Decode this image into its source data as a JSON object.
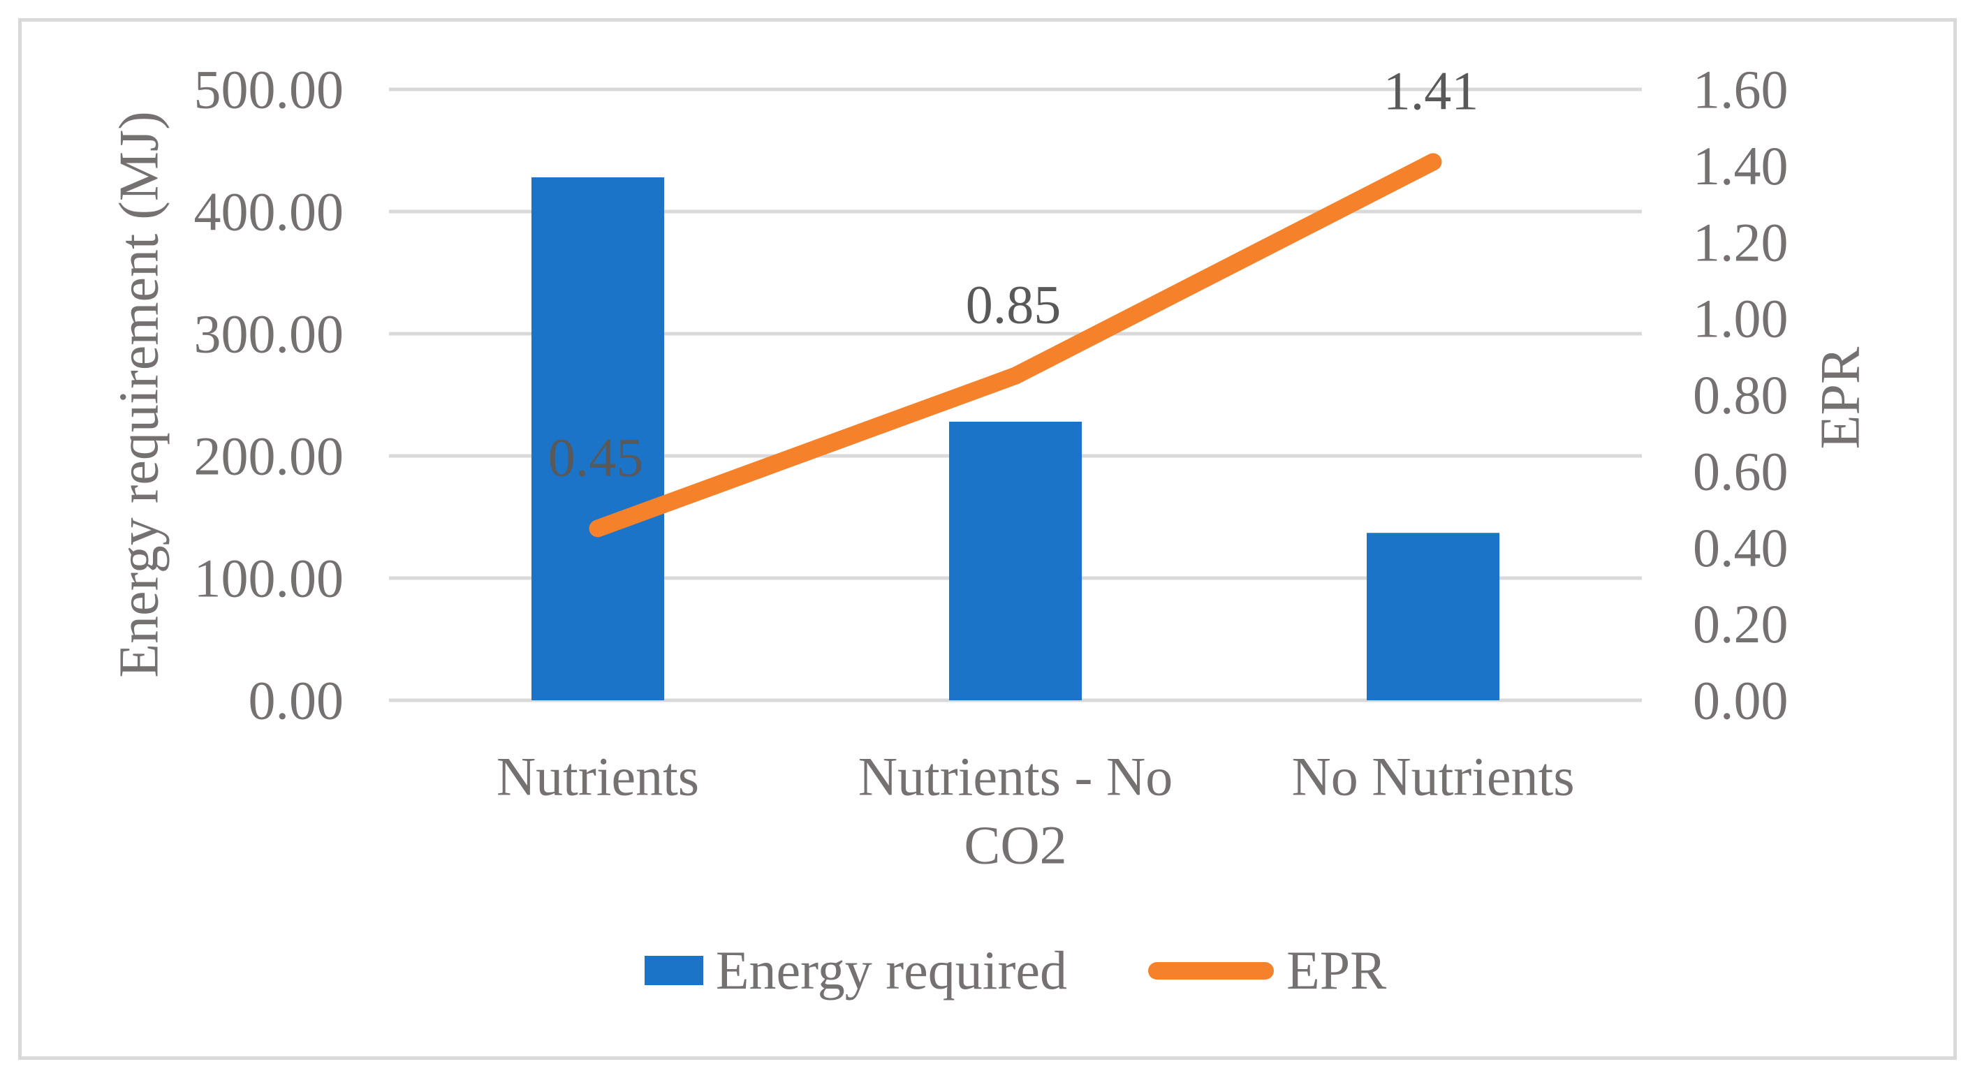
{
  "chart_data": {
    "type": "bar",
    "subtype": "combo-bar-line-dual-axis",
    "categories": [
      "Nutrients",
      "Nutrients - No CO2",
      "No Nutrients"
    ],
    "category_display_lines": [
      [
        "Nutrients"
      ],
      [
        "Nutrients - No",
        "CO2"
      ],
      [
        "No Nutrients"
      ]
    ],
    "series": [
      {
        "name": "Energy required",
        "type": "bar",
        "axis": "left",
        "values": [
          428,
          228,
          137
        ],
        "color": "#1b74c8"
      },
      {
        "name": "EPR",
        "type": "line",
        "axis": "right",
        "values": [
          0.45,
          0.85,
          1.41
        ],
        "data_labels": [
          "0.45",
          "0.85",
          "1.41"
        ],
        "color": "#f5822b"
      }
    ],
    "left_axis": {
      "title": "Energy requirement (MJ)",
      "min": 0,
      "max": 500,
      "tick_step": 100,
      "ticks": [
        "500.00",
        "400.00",
        "300.00",
        "200.00",
        "100.00",
        "0.00"
      ]
    },
    "right_axis": {
      "title": "EPR",
      "min": 0,
      "max": 1.6,
      "tick_step": 0.2,
      "ticks": [
        "1.60",
        "1.40",
        "1.20",
        "1.00",
        "0.80",
        "0.60",
        "0.40",
        "0.20",
        "0.00"
      ]
    },
    "grid": true,
    "legend_position": "bottom",
    "colors": {
      "bar_blue": "#1b74c8",
      "line_orange": "#f5822b",
      "gridline_gray": "#d9d9d9",
      "axis_text_gray": "#767171",
      "data_label_gray": "#595959",
      "frame_border_gray": "#d9d9d9"
    }
  }
}
